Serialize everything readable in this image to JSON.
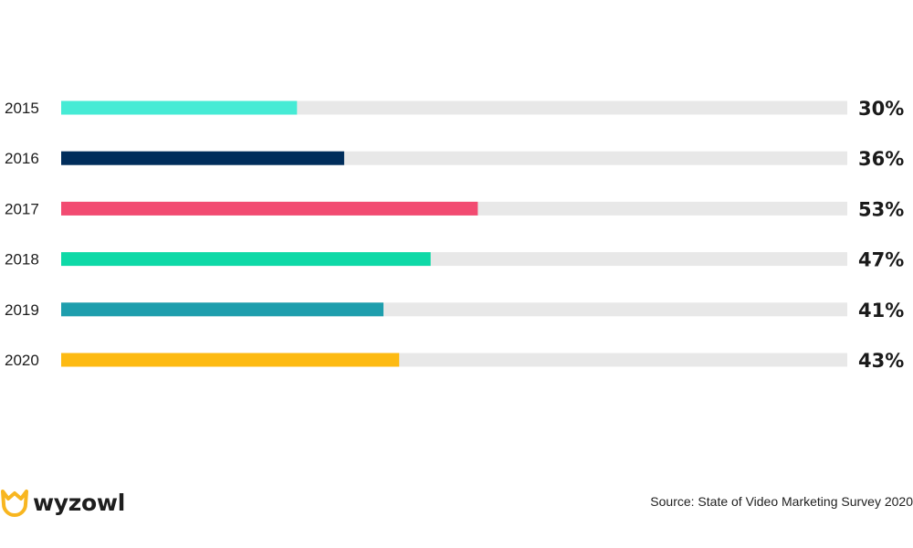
{
  "chart_data": {
    "type": "bar",
    "orientation": "horizontal",
    "categories": [
      "2015",
      "2016",
      "2017",
      "2018",
      "2019",
      "2020"
    ],
    "values": [
      30,
      36,
      53,
      47,
      41,
      43
    ],
    "value_labels": [
      "30%",
      "36%",
      "53%",
      "47%",
      "41%",
      "43%"
    ],
    "unit": "%",
    "xlim": [
      0,
      100
    ],
    "colors": [
      "#46EBD5",
      "#002D5B",
      "#F24B71",
      "#0ED9A7",
      "#1E9EAD",
      "#FDBA12"
    ],
    "track_color": "#E8E8E8",
    "grid": false,
    "legend": "none"
  },
  "footer": {
    "logo_text": "wyzowl",
    "logo_color": "#F8B620",
    "source": "Source: State of Video Marketing Survey 2020"
  }
}
